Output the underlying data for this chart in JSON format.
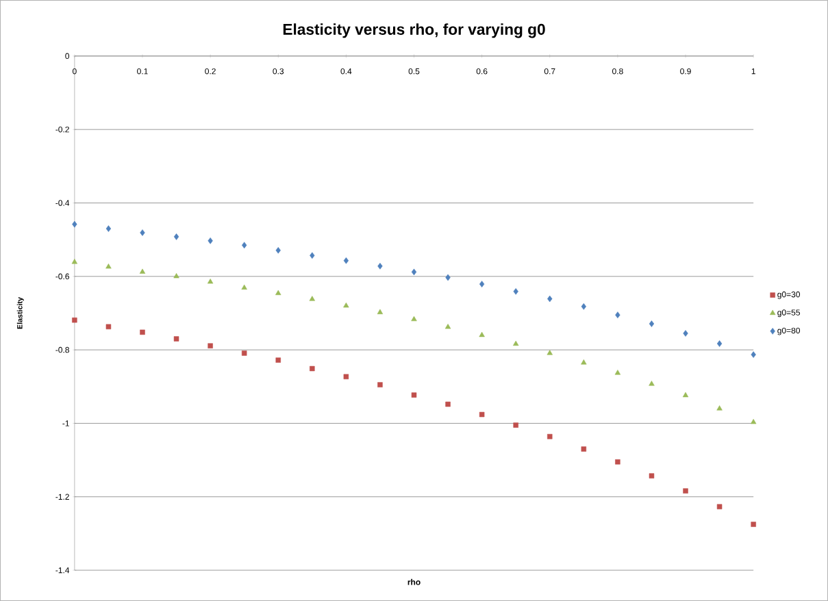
{
  "chart_data": {
    "type": "scatter",
    "title": "Elasticity versus rho, for varying g0",
    "xlabel": "rho",
    "ylabel": "Elasticity",
    "x": [
      0,
      0.05,
      0.1,
      0.15,
      0.2,
      0.25,
      0.3,
      0.35,
      0.4,
      0.45,
      0.5,
      0.55,
      0.6,
      0.65,
      0.7,
      0.75,
      0.8,
      0.85,
      0.9,
      0.95,
      1
    ],
    "series": [
      {
        "name": "g0=30",
        "color": "#c0504d",
        "marker": "square",
        "values": [
          -0.719,
          -0.737,
          -0.752,
          -0.77,
          -0.789,
          -0.809,
          -0.828,
          -0.851,
          -0.873,
          -0.895,
          -0.923,
          -0.948,
          -0.976,
          -1.005,
          -1.036,
          -1.07,
          -1.105,
          -1.143,
          -1.184,
          -1.227,
          -1.275
        ]
      },
      {
        "name": "g0=55",
        "color": "#9bbb59",
        "marker": "triangle",
        "values": [
          -0.561,
          -0.574,
          -0.588,
          -0.6,
          -0.615,
          -0.631,
          -0.646,
          -0.662,
          -0.68,
          -0.698,
          -0.717,
          -0.738,
          -0.76,
          -0.784,
          -0.809,
          -0.835,
          -0.863,
          -0.893,
          -0.924,
          -0.96,
          -0.997
        ]
      },
      {
        "name": "g0=80",
        "color": "#4f81bd",
        "marker": "diamond",
        "values": [
          -0.458,
          -0.47,
          -0.481,
          -0.492,
          -0.503,
          -0.515,
          -0.529,
          -0.543,
          -0.557,
          -0.572,
          -0.588,
          -0.603,
          -0.621,
          -0.641,
          -0.661,
          -0.682,
          -0.705,
          -0.729,
          -0.755,
          -0.783,
          -0.813
        ]
      }
    ],
    "xlim": [
      0,
      1
    ],
    "ylim": [
      -1.4,
      0
    ],
    "xticks": [
      0,
      0.1,
      0.2,
      0.3,
      0.4,
      0.5,
      0.6,
      0.7,
      0.8,
      0.9,
      1
    ],
    "yticks": [
      0,
      -0.2,
      -0.4,
      -0.6,
      -0.8,
      -1,
      -1.2,
      -1.4
    ],
    "grid": "y",
    "legend": "right"
  }
}
